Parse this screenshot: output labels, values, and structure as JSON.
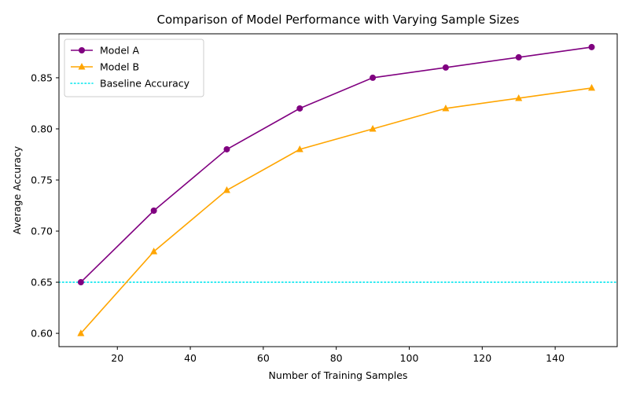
{
  "chart_data": {
    "type": "line",
    "title": "Comparison of Model Performance with Varying Sample Sizes",
    "xlabel": "Number of Training Samples",
    "ylabel": "Average Accuracy",
    "x": [
      10,
      30,
      50,
      70,
      90,
      110,
      130,
      150
    ],
    "xlim": [
      4,
      157
    ],
    "ylim": [
      0.587,
      0.893
    ],
    "xticks": [
      20,
      40,
      60,
      80,
      100,
      120,
      140
    ],
    "yticks": [
      0.6,
      0.65,
      0.7,
      0.75,
      0.8,
      0.85
    ],
    "grid": false,
    "legend_position": "top-left",
    "series": [
      {
        "name": "Model A",
        "values": [
          0.65,
          0.72,
          0.78,
          0.82,
          0.85,
          0.86,
          0.87,
          0.88
        ],
        "color": "#800080",
        "marker": "circle"
      },
      {
        "name": "Model B",
        "values": [
          0.6,
          0.68,
          0.74,
          0.78,
          0.8,
          0.82,
          0.83,
          0.84
        ],
        "color": "#FFA500",
        "marker": "triangle"
      }
    ],
    "reference_lines": [
      {
        "name": "Baseline Accuracy",
        "y": 0.65,
        "color": "#00E5EE",
        "style": "dotted"
      }
    ]
  }
}
